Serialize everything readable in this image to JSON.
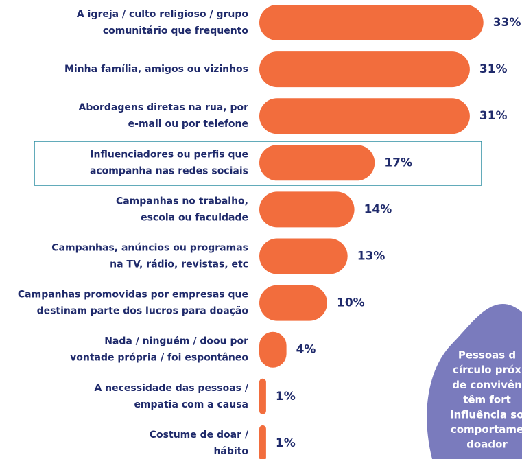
{
  "chart_data": {
    "type": "bar",
    "categories": [
      [
        "A igreja / culto religioso / grupo",
        "comunitário que frequento"
      ],
      [
        "Minha família, amigos ou vizinhos"
      ],
      [
        "Abordagens diretas na rua, por",
        "e-mail ou por telefone"
      ],
      [
        "Influenciadores ou perfis que",
        "acompanha nas redes sociais"
      ],
      [
        "Campanhas no trabalho,",
        "escola ou faculdade"
      ],
      [
        "Campanhas, anúncios ou programas",
        "na TV, rádio, revistas, etc"
      ],
      [
        "Campanhas promovidas por empresas que",
        "destinam parte dos lucros para doação"
      ],
      [
        "Nada / ninguém / doou por",
        "vontade própria / foi espontâneo"
      ],
      [
        "A necessidade das pessoas /",
        "empatia com a causa"
      ],
      [
        "Costume de doar /",
        "hábito"
      ]
    ],
    "values": [
      33,
      31,
      31,
      17,
      14,
      13,
      10,
      4,
      1,
      1
    ],
    "value_labels": [
      "33%",
      "31%",
      "31%",
      "17%",
      "14%",
      "13%",
      "10%",
      "4%",
      "1%",
      "1%"
    ],
    "color": "#f26d3d",
    "callout": [
      "Pessoas d",
      "círculo próx",
      "de convivên",
      "têm fort",
      "influência so",
      "comportame",
      "doador"
    ]
  }
}
